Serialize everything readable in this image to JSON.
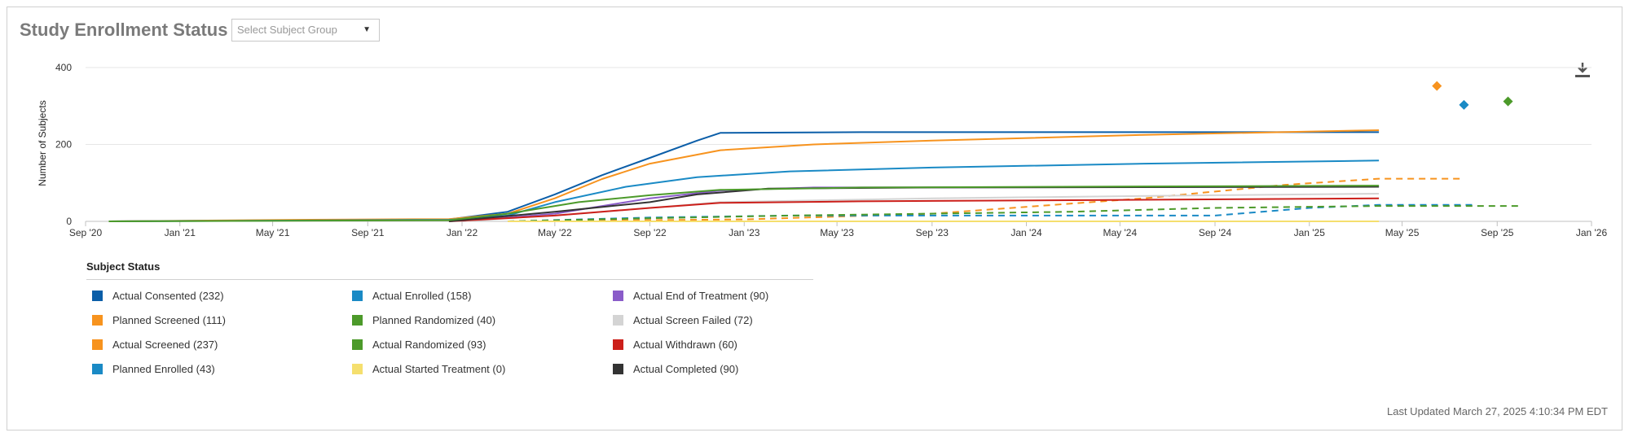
{
  "header": {
    "title": "Study Enrollment Status",
    "select_placeholder": "Select Subject Group"
  },
  "footer": {
    "last_updated": "Last Updated March 27, 2025 4:10:34 PM EDT"
  },
  "icons": {
    "download": "download-icon",
    "dropdown": "caret-down-icon"
  },
  "legend": {
    "title": "Subject Status"
  },
  "chart_data": {
    "type": "line",
    "title": "",
    "xlabel": "",
    "ylabel": "Number of Subjects",
    "x_axis_type": "date",
    "xlim": [
      "2020-09-01",
      "2026-01-01"
    ],
    "ylim": [
      0,
      400
    ],
    "yticks": [
      0,
      200,
      400
    ],
    "xtick_labels": [
      "Sep '20",
      "Jan '21",
      "May '21",
      "Sep '21",
      "Jan '22",
      "May '22",
      "Sep '22",
      "Jan '23",
      "May '23",
      "Sep '23",
      "Jan '24",
      "May '24",
      "Sep '24",
      "Jan '25",
      "May '25",
      "Sep '25",
      "Jan '26"
    ],
    "xtick_dates": [
      "2020-09-01",
      "2021-01-01",
      "2021-05-01",
      "2021-09-01",
      "2022-01-01",
      "2022-05-01",
      "2022-09-01",
      "2023-01-01",
      "2023-05-01",
      "2023-09-01",
      "2024-01-01",
      "2024-05-01",
      "2024-09-01",
      "2025-01-01",
      "2025-05-01",
      "2025-09-01",
      "2026-01-01"
    ],
    "grid": true,
    "legend_position": "bottom",
    "series": [
      {
        "name": "Actual Consented (232)",
        "color": "#0b5ea8",
        "dash": false,
        "points": [
          [
            "2020-10-01",
            0
          ],
          [
            "2021-06-01",
            3
          ],
          [
            "2021-12-15",
            5
          ],
          [
            "2022-03-01",
            25
          ],
          [
            "2022-05-01",
            70
          ],
          [
            "2022-07-01",
            120
          ],
          [
            "2022-09-01",
            165
          ],
          [
            "2022-11-01",
            210
          ],
          [
            "2022-12-01",
            230
          ],
          [
            "2023-06-01",
            232
          ],
          [
            "2025-04-01",
            232
          ]
        ]
      },
      {
        "name": "Planned Screened (111)",
        "color": "#f7931e",
        "dash": true,
        "points": [
          [
            "2022-03-01",
            0
          ],
          [
            "2023-01-01",
            5
          ],
          [
            "2023-09-01",
            20
          ],
          [
            "2024-06-01",
            60
          ],
          [
            "2024-12-01",
            95
          ],
          [
            "2025-04-01",
            111
          ],
          [
            "2025-07-15",
            111
          ]
        ]
      },
      {
        "name": "Actual Screened (237)",
        "color": "#f7931e",
        "dash": false,
        "points": [
          [
            "2020-10-01",
            0
          ],
          [
            "2021-06-01",
            4
          ],
          [
            "2021-12-15",
            6
          ],
          [
            "2022-03-01",
            20
          ],
          [
            "2022-05-01",
            60
          ],
          [
            "2022-07-01",
            110
          ],
          [
            "2022-09-01",
            150
          ],
          [
            "2022-12-01",
            185
          ],
          [
            "2023-04-01",
            200
          ],
          [
            "2023-09-01",
            210
          ],
          [
            "2024-06-01",
            225
          ],
          [
            "2025-04-01",
            237
          ]
        ]
      },
      {
        "name": "Planned Enrolled (43)",
        "color": "#1a8ac5",
        "dash": true,
        "points": [
          [
            "2022-03-01",
            0
          ],
          [
            "2022-09-01",
            10
          ],
          [
            "2023-03-01",
            15
          ],
          [
            "2024-09-01",
            15
          ],
          [
            "2025-01-01",
            35
          ],
          [
            "2025-04-01",
            43
          ],
          [
            "2025-08-01",
            43
          ]
        ]
      },
      {
        "name": "Actual Enrolled (158)",
        "color": "#1a8ac5",
        "dash": false,
        "points": [
          [
            "2020-10-01",
            0
          ],
          [
            "2021-12-15",
            4
          ],
          [
            "2022-03-01",
            15
          ],
          [
            "2022-05-01",
            50
          ],
          [
            "2022-08-01",
            90
          ],
          [
            "2022-11-01",
            115
          ],
          [
            "2023-03-01",
            130
          ],
          [
            "2023-09-01",
            140
          ],
          [
            "2024-06-01",
            150
          ],
          [
            "2025-04-01",
            158
          ]
        ]
      },
      {
        "name": "Planned Randomized (40)",
        "color": "#4c9a2a",
        "dash": true,
        "points": [
          [
            "2022-03-01",
            0
          ],
          [
            "2022-09-01",
            8
          ],
          [
            "2023-03-01",
            15
          ],
          [
            "2024-03-01",
            25
          ],
          [
            "2024-09-01",
            35
          ],
          [
            "2025-04-01",
            40
          ],
          [
            "2025-10-01",
            40
          ]
        ]
      },
      {
        "name": "Actual Started Treatment (0)",
        "color": "#f5df6e",
        "dash": false,
        "points": [
          [
            "2022-03-01",
            0
          ],
          [
            "2025-04-01",
            0
          ]
        ]
      },
      {
        "name": "Actual End of Treatment (90)",
        "color": "#8a5cc9",
        "dash": false,
        "points": [
          [
            "2022-01-01",
            0
          ],
          [
            "2022-05-01",
            20
          ],
          [
            "2022-09-01",
            60
          ],
          [
            "2022-12-01",
            80
          ],
          [
            "2023-04-01",
            88
          ],
          [
            "2025-04-01",
            90
          ]
        ]
      },
      {
        "name": "Actual Screen Failed (72)",
        "color": "#d4d4d4",
        "dash": false,
        "points": [
          [
            "2022-01-01",
            0
          ],
          [
            "2022-06-01",
            20
          ],
          [
            "2022-12-01",
            50
          ],
          [
            "2023-09-01",
            60
          ],
          [
            "2024-09-01",
            68
          ],
          [
            "2025-04-01",
            72
          ]
        ]
      },
      {
        "name": "Actual Withdrawn (60)",
        "color": "#cc1f1a",
        "dash": false,
        "points": [
          [
            "2021-12-15",
            0
          ],
          [
            "2022-05-01",
            15
          ],
          [
            "2022-09-01",
            35
          ],
          [
            "2022-12-01",
            48
          ],
          [
            "2023-06-01",
            52
          ],
          [
            "2024-03-01",
            55
          ],
          [
            "2025-04-01",
            60
          ]
        ]
      },
      {
        "name": "Actual Completed (90)",
        "color": "#333333",
        "dash": false,
        "points": [
          [
            "2021-12-15",
            0
          ],
          [
            "2022-05-01",
            25
          ],
          [
            "2022-09-01",
            50
          ],
          [
            "2022-11-01",
            70
          ],
          [
            "2023-02-01",
            85
          ],
          [
            "2023-09-01",
            88
          ],
          [
            "2025-04-01",
            90
          ]
        ]
      },
      {
        "name": "Actual Randomized (93)",
        "color": "#4c9a2a",
        "dash": false,
        "points": [
          [
            "2020-10-01",
            0
          ],
          [
            "2021-12-15",
            3
          ],
          [
            "2022-03-01",
            20
          ],
          [
            "2022-06-01",
            50
          ],
          [
            "2022-09-01",
            68
          ],
          [
            "2022-12-01",
            82
          ],
          [
            "2023-06-01",
            88
          ],
          [
            "2025-04-01",
            93
          ]
        ]
      }
    ],
    "markers": [
      {
        "date": "2025-06-15",
        "value": 352,
        "color": "#f7931e"
      },
      {
        "date": "2025-07-20",
        "value": 303,
        "color": "#1a8ac5"
      },
      {
        "date": "2025-09-15",
        "value": 312,
        "color": "#4c9a2a"
      }
    ],
    "legend_columns": [
      [
        "Actual Consented (232)",
        "Planned Screened (111)",
        "Actual Screened (237)",
        "Planned Enrolled (43)"
      ],
      [
        "Actual Enrolled (158)",
        "Planned Randomized (40)",
        "Actual Randomized (93)",
        "Actual Started Treatment (0)"
      ],
      [
        "Actual End of Treatment (90)",
        "Actual Screen Failed (72)",
        "Actual Withdrawn (60)",
        "Actual Completed (90)"
      ]
    ]
  }
}
